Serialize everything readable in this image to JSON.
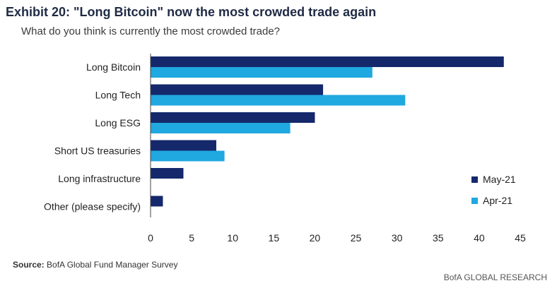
{
  "header": {
    "title": "Exhibit 20: \"Long Bitcoin\" now the most crowded trade again",
    "subtitle": "What do you think is currently the most crowded trade?"
  },
  "footer": {
    "source_label": "Source:",
    "source_text": "BofA Global Fund Manager Survey",
    "brand": "BofA GLOBAL RESEARCH"
  },
  "chart_data": {
    "type": "bar",
    "orientation": "horizontal",
    "categories": [
      "Long Bitcoin",
      "Long Tech",
      "Long ESG",
      "Short US treasuries",
      "Long infrastructure",
      "Other (please specify)"
    ],
    "series": [
      {
        "name": "May-21",
        "color": "#14286b",
        "values": [
          43,
          21,
          20,
          8,
          4,
          1.5
        ]
      },
      {
        "name": "Apr-21",
        "color": "#20a8e0",
        "values": [
          27,
          31,
          17,
          9,
          null,
          null
        ]
      }
    ],
    "xlim": [
      0,
      45
    ],
    "xticks": [
      0,
      5,
      10,
      15,
      20,
      25,
      30,
      35,
      40,
      45
    ],
    "grid": false,
    "legend_position": "right"
  }
}
